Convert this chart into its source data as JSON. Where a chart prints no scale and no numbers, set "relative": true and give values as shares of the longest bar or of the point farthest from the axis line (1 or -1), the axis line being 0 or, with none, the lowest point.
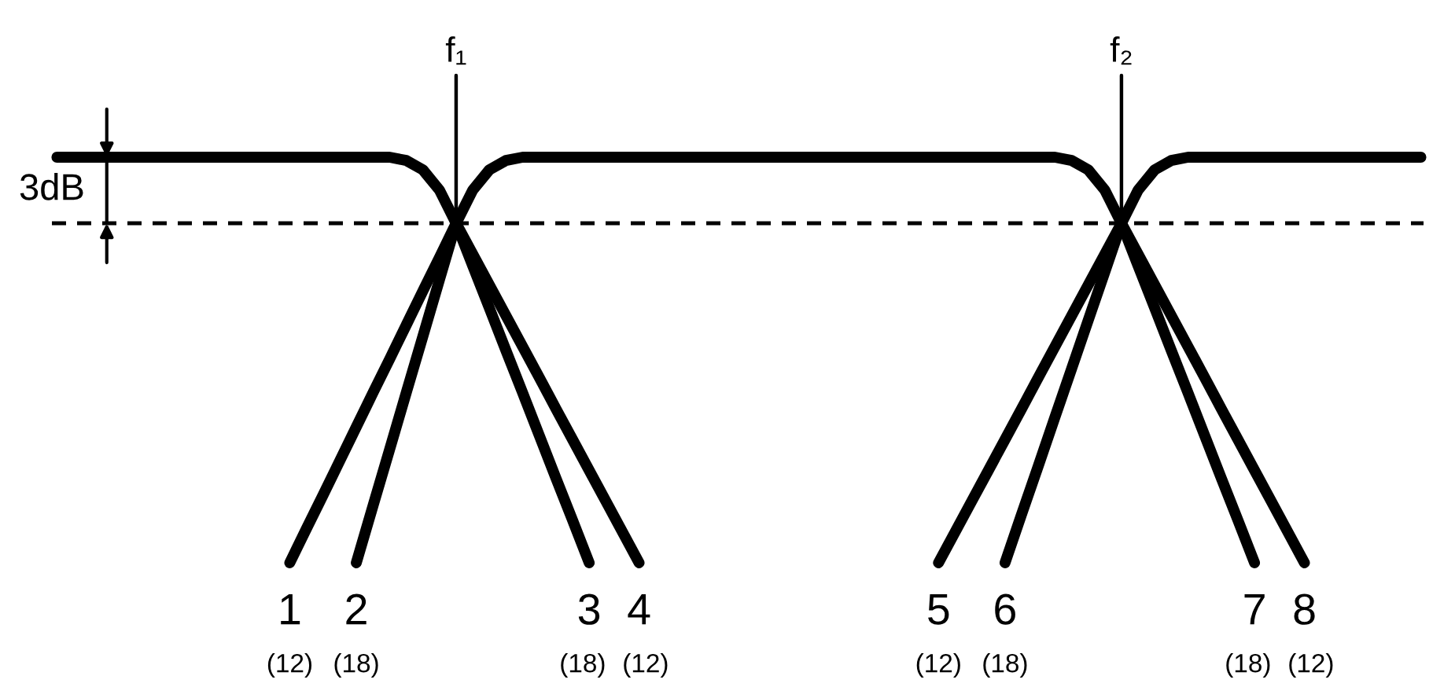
{
  "chart_data": {
    "type": "line",
    "relative": true,
    "tick_labels": "x",
    "line_style": "solid",
    "categories": [
      null,
      null,
      null,
      null,
      null,
      null,
      null,
      null,
      null,
      null,
      null,
      null,
      null,
      null,
      null,
      null,
      null,
      null,
      null,
      null,
      null,
      null,
      null,
      null,
      "f₁",
      null,
      null,
      null,
      null,
      null,
      null,
      null,
      null,
      null,
      null,
      null,
      null,
      null,
      null,
      null,
      null,
      null,
      null,
      null,
      null,
      null,
      null,
      null,
      null,
      null,
      null,
      null,
      null,
      null,
      null,
      null,
      null,
      null,
      null,
      null,
      null,
      null,
      null,
      null,
      "f₂",
      null,
      null,
      null,
      null,
      null,
      null,
      null,
      null,
      null,
      null,
      null,
      null,
      null,
      null,
      null,
      null,
      null,
      null
    ],
    "series": [
      {
        "color": "#000000",
        "values": [
          1,
          1,
          1,
          1,
          1,
          1,
          1,
          1,
          1,
          1,
          1,
          1,
          1,
          1,
          1,
          1,
          1,
          1,
          1,
          1,
          1,
          0.992,
          0.969,
          0.919,
          0.837,
          null,
          null,
          null,
          null,
          null,
          null,
          null,
          null,
          null,
          null,
          null,
          null,
          null,
          null,
          null,
          null,
          null,
          null,
          null,
          null,
          null,
          null,
          null,
          null,
          null,
          null,
          null,
          null,
          null,
          null,
          null,
          null,
          null,
          null,
          null,
          null,
          null,
          null,
          null,
          null,
          null,
          null,
          null,
          null,
          null,
          null,
          null,
          null,
          null,
          null,
          null,
          null,
          null,
          null,
          null,
          null,
          null,
          null
        ]
      },
      {
        "color": "#000000",
        "values": [
          null,
          null,
          null,
          null,
          null,
          null,
          null,
          null,
          null,
          null,
          null,
          null,
          null,
          null,
          null,
          null,
          null,
          null,
          null,
          null,
          null,
          null,
          null,
          null,
          0.837,
          0.919,
          0.969,
          0.992,
          1,
          1,
          1,
          1,
          1,
          1,
          1,
          1,
          1,
          1,
          1,
          1,
          1,
          1,
          1,
          1,
          1,
          1,
          1,
          1,
          1,
          1,
          1,
          1,
          1,
          1,
          1,
          1,
          1,
          1,
          1,
          1,
          1,
          0.992,
          0.969,
          0.919,
          0.837,
          null,
          null,
          null,
          null,
          null,
          null,
          null,
          null,
          null,
          null,
          null,
          null,
          null,
          null,
          null,
          null,
          null,
          null
        ]
      },
      {
        "color": "#000000",
        "values": [
          null,
          null,
          null,
          null,
          null,
          null,
          null,
          null,
          null,
          null,
          null,
          null,
          null,
          null,
          null,
          null,
          null,
          null,
          null,
          null,
          null,
          null,
          null,
          null,
          null,
          null,
          null,
          null,
          null,
          null,
          null,
          null,
          null,
          null,
          null,
          null,
          null,
          null,
          null,
          null,
          null,
          null,
          null,
          null,
          null,
          null,
          null,
          null,
          null,
          null,
          null,
          null,
          null,
          null,
          null,
          null,
          null,
          null,
          null,
          null,
          null,
          null,
          null,
          null,
          0.837,
          0.919,
          0.969,
          0.992,
          1,
          1,
          1,
          1,
          1,
          1,
          1,
          1,
          1,
          1,
          1,
          1,
          1,
          1,
          1
        ]
      },
      {
        "name": "1",
        "color": "#000000",
        "values": [
          null,
          null,
          null,
          null,
          null,
          null,
          null,
          null,
          null,
          null,
          null,
          null,
          null,
          null,
          0,
          0.084,
          0.167,
          0.251,
          0.335,
          0.419,
          0.502,
          0.586,
          0.67,
          0.753,
          0.837,
          null,
          null,
          null,
          null,
          null,
          null,
          null,
          null,
          null,
          null,
          null,
          null,
          null,
          null,
          null,
          null,
          null,
          null,
          null,
          null,
          null,
          null,
          null,
          null,
          null,
          null,
          null,
          null,
          null,
          null,
          null,
          null,
          null,
          null,
          null,
          null,
          null,
          null,
          null,
          null,
          null,
          null,
          null,
          null,
          null,
          null,
          null,
          null,
          null,
          null,
          null,
          null,
          null,
          null,
          null,
          null,
          null,
          null
        ]
      },
      {
        "name": "2",
        "color": "#000000",
        "values": [
          null,
          null,
          null,
          null,
          null,
          null,
          null,
          null,
          null,
          null,
          null,
          null,
          null,
          null,
          null,
          null,
          null,
          null,
          0,
          0.14,
          0.279,
          0.419,
          0.558,
          0.698,
          0.837,
          null,
          null,
          null,
          null,
          null,
          null,
          null,
          null,
          null,
          null,
          null,
          null,
          null,
          null,
          null,
          null,
          null,
          null,
          null,
          null,
          null,
          null,
          null,
          null,
          null,
          null,
          null,
          null,
          null,
          null,
          null,
          null,
          null,
          null,
          null,
          null,
          null,
          null,
          null,
          null,
          null,
          null,
          null,
          null,
          null,
          null,
          null,
          null,
          null,
          null,
          null,
          null,
          null,
          null,
          null,
          null,
          null,
          null
        ]
      },
      {
        "name": "3",
        "color": "#000000",
        "values": [
          null,
          null,
          null,
          null,
          null,
          null,
          null,
          null,
          null,
          null,
          null,
          null,
          null,
          null,
          null,
          null,
          null,
          null,
          null,
          null,
          null,
          null,
          null,
          null,
          0.837,
          0.732,
          0.628,
          0.523,
          0.419,
          0.314,
          0.209,
          0.105,
          0,
          null,
          null,
          null,
          null,
          null,
          null,
          null,
          null,
          null,
          null,
          null,
          null,
          null,
          null,
          null,
          null,
          null,
          null,
          null,
          null,
          null,
          null,
          null,
          null,
          null,
          null,
          null,
          null,
          null,
          null,
          null,
          null,
          null,
          null,
          null,
          null,
          null,
          null,
          null,
          null,
          null,
          null,
          null,
          null,
          null,
          null,
          null,
          null,
          null,
          null
        ]
      },
      {
        "name": "4",
        "color": "#000000",
        "values": [
          null,
          null,
          null,
          null,
          null,
          null,
          null,
          null,
          null,
          null,
          null,
          null,
          null,
          null,
          null,
          null,
          null,
          null,
          null,
          null,
          null,
          null,
          null,
          null,
          0.837,
          0.761,
          0.685,
          0.609,
          0.533,
          0.457,
          0.38,
          0.304,
          0.228,
          0.152,
          0.076,
          0,
          null,
          null,
          null,
          null,
          null,
          null,
          null,
          null,
          null,
          null,
          null,
          null,
          null,
          null,
          null,
          null,
          null,
          null,
          null,
          null,
          null,
          null,
          null,
          null,
          null,
          null,
          null,
          null,
          null,
          null,
          null,
          null,
          null,
          null,
          null,
          null,
          null,
          null,
          null,
          null,
          null,
          null,
          null,
          null,
          null,
          null,
          null
        ]
      },
      {
        "name": "5",
        "color": "#000000",
        "values": [
          null,
          null,
          null,
          null,
          null,
          null,
          null,
          null,
          null,
          null,
          null,
          null,
          null,
          null,
          null,
          null,
          null,
          null,
          null,
          null,
          null,
          null,
          null,
          null,
          null,
          null,
          null,
          null,
          null,
          null,
          null,
          null,
          null,
          null,
          null,
          null,
          null,
          null,
          null,
          null,
          null,
          null,
          null,
          null,
          null,
          null,
          null,
          null,
          null,
          null,
          null,
          null,
          null,
          0,
          0.076,
          0.152,
          0.228,
          0.304,
          0.38,
          0.457,
          0.533,
          0.609,
          0.685,
          0.761,
          0.837,
          null,
          null,
          null,
          null,
          null,
          null,
          null,
          null,
          null,
          null,
          null,
          null,
          null,
          null,
          null,
          null,
          null,
          null
        ]
      },
      {
        "name": "6",
        "color": "#000000",
        "values": [
          null,
          null,
          null,
          null,
          null,
          null,
          null,
          null,
          null,
          null,
          null,
          null,
          null,
          null,
          null,
          null,
          null,
          null,
          null,
          null,
          null,
          null,
          null,
          null,
          null,
          null,
          null,
          null,
          null,
          null,
          null,
          null,
          null,
          null,
          null,
          null,
          null,
          null,
          null,
          null,
          null,
          null,
          null,
          null,
          null,
          null,
          null,
          null,
          null,
          null,
          null,
          null,
          null,
          null,
          null,
          null,
          null,
          0,
          0.12,
          0.239,
          0.359,
          0.478,
          0.598,
          0.717,
          0.837,
          null,
          null,
          null,
          null,
          null,
          null,
          null,
          null,
          null,
          null,
          null,
          null,
          null,
          null,
          null,
          null,
          null,
          null
        ]
      },
      {
        "name": "7",
        "color": "#000000",
        "values": [
          null,
          null,
          null,
          null,
          null,
          null,
          null,
          null,
          null,
          null,
          null,
          null,
          null,
          null,
          null,
          null,
          null,
          null,
          null,
          null,
          null,
          null,
          null,
          null,
          null,
          null,
          null,
          null,
          null,
          null,
          null,
          null,
          null,
          null,
          null,
          null,
          null,
          null,
          null,
          null,
          null,
          null,
          null,
          null,
          null,
          null,
          null,
          null,
          null,
          null,
          null,
          null,
          null,
          null,
          null,
          null,
          null,
          null,
          null,
          null,
          null,
          null,
          null,
          null,
          0.837,
          0.732,
          0.628,
          0.523,
          0.419,
          0.314,
          0.209,
          0.105,
          0,
          null,
          null,
          null,
          null,
          null,
          null,
          null,
          null,
          null,
          null
        ]
      },
      {
        "name": "8",
        "color": "#000000",
        "values": [
          null,
          null,
          null,
          null,
          null,
          null,
          null,
          null,
          null,
          null,
          null,
          null,
          null,
          null,
          null,
          null,
          null,
          null,
          null,
          null,
          null,
          null,
          null,
          null,
          null,
          null,
          null,
          null,
          null,
          null,
          null,
          null,
          null,
          null,
          null,
          null,
          null,
          null,
          null,
          null,
          null,
          null,
          null,
          null,
          null,
          null,
          null,
          null,
          null,
          null,
          null,
          null,
          null,
          null,
          null,
          null,
          null,
          null,
          null,
          null,
          null,
          null,
          null,
          null,
          0.837,
          0.761,
          0.685,
          0.609,
          0.533,
          0.457,
          0.38,
          0.304,
          0.228,
          0.152,
          0.076,
          0,
          null,
          null,
          null,
          null,
          null,
          null,
          null
        ]
      }
    ],
    "ref_lines": [
      {
        "axis": "y",
        "value": 0.837,
        "line_style": "dashed"
      },
      {
        "axis": "x",
        "value": "f₁"
      },
      {
        "axis": "x",
        "value": "f₂"
      }
    ],
    "annotations": [
      "3dB",
      "(12)",
      "(18)",
      "(18)",
      "(12)",
      "(12)",
      "(18)",
      "(18)",
      "(12)"
    ]
  }
}
